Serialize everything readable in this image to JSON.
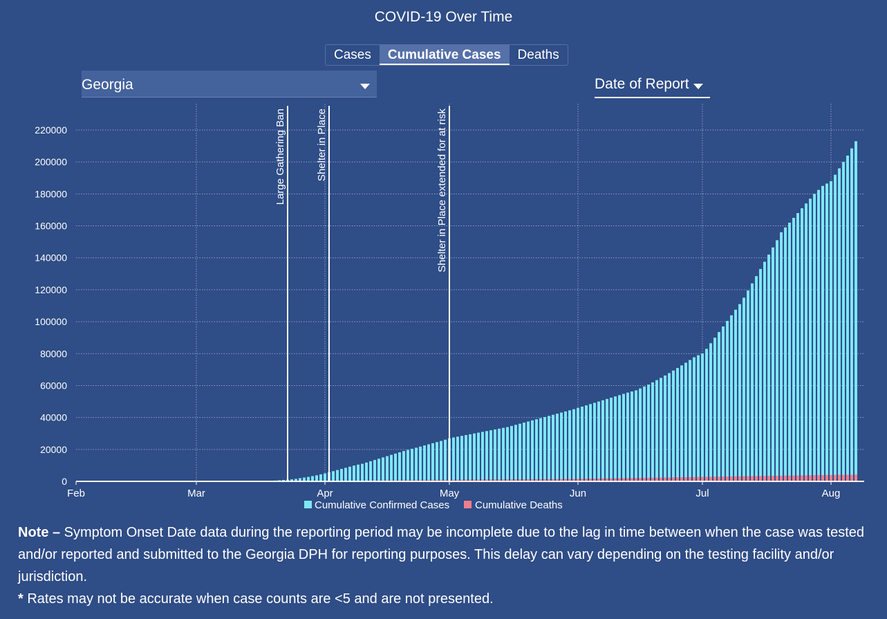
{
  "title": "COVID-19 Over Time",
  "tabs": [
    {
      "label": "Cases"
    },
    {
      "label": "Cumulative Cases",
      "active": true
    },
    {
      "label": "Deaths"
    }
  ],
  "region_select": {
    "value": "Georgia"
  },
  "date_select": {
    "value": "Date of Report"
  },
  "colors": {
    "background": "#2f4d86",
    "cases": "#7fe6f7",
    "deaths": "#f07e8c"
  },
  "chart_data": {
    "type": "bar",
    "title": "",
    "xlabel": "",
    "ylabel": "",
    "x_domain": [
      "2020-02-01",
      "2020-08-09"
    ],
    "ylim": [
      0,
      230000
    ],
    "yticks": [
      0,
      20000,
      40000,
      60000,
      80000,
      100000,
      120000,
      140000,
      160000,
      180000,
      200000,
      220000
    ],
    "xticks": [
      {
        "label": "Feb",
        "date": "2020-02-01"
      },
      {
        "label": "Mar",
        "date": "2020-03-01"
      },
      {
        "label": "Apr",
        "date": "2020-04-01"
      },
      {
        "label": "May",
        "date": "2020-05-01"
      },
      {
        "label": "Jun",
        "date": "2020-06-01"
      },
      {
        "label": "Jul",
        "date": "2020-07-01"
      },
      {
        "label": "Aug",
        "date": "2020-08-01"
      }
    ],
    "grid": true,
    "legend_position": "bottom",
    "start_date": "2020-03-20",
    "annotations": [
      {
        "label": "Large Gathering Ban",
        "date": "2020-03-23"
      },
      {
        "label": "Shelter in Place",
        "date": "2020-04-02"
      },
      {
        "label": "Shelter in Place extended for at risk",
        "date": "2020-05-01"
      }
    ],
    "series": [
      {
        "name": "Cumulative Confirmed Cases",
        "values": [
          500,
          700,
          900,
          1100,
          1300,
          1600,
          2000,
          2400,
          2800,
          3300,
          3800,
          4400,
          5000,
          5700,
          6400,
          7100,
          7800,
          8500,
          9200,
          9900,
          10500,
          11000,
          11800,
          12600,
          13400,
          14200,
          15000,
          15800,
          16600,
          17400,
          18200,
          19000,
          19700,
          20400,
          21100,
          21800,
          22500,
          23200,
          23900,
          24600,
          25300,
          26100,
          27000,
          27500,
          28000,
          28500,
          29000,
          29500,
          30000,
          30500,
          31000,
          31500,
          32000,
          32500,
          33000,
          33500,
          34000,
          34700,
          35400,
          36100,
          36800,
          37500,
          38200,
          38900,
          39600,
          40300,
          41000,
          41700,
          42400,
          43100,
          43800,
          44500,
          45200,
          46000,
          46800,
          47600,
          48400,
          49200,
          50000,
          50800,
          51600,
          52400,
          53200,
          54000,
          54800,
          55600,
          56300,
          57000,
          58200,
          59400,
          60600,
          62000,
          63400,
          64800,
          66300,
          67800,
          69400,
          71000,
          72600,
          74300,
          76000,
          77700,
          79000,
          80000,
          83000,
          86500,
          90000,
          93500,
          97000,
          100500,
          104000,
          107500,
          111000,
          115000,
          119500,
          124000,
          128500,
          133000,
          137500,
          142000,
          146500,
          151000,
          156000,
          159000,
          162000,
          165000,
          168000,
          171000,
          174000,
          177000,
          180000,
          182500,
          185000,
          186500,
          188000,
          192000,
          196000,
          200000,
          204000,
          208500,
          213000
        ]
      },
      {
        "name": "Cumulative Deaths",
        "values": [
          10,
          15,
          25,
          30,
          40,
          50,
          65,
          80,
          100,
          115,
          130,
          150,
          160,
          190,
          220,
          250,
          280,
          310,
          340,
          370,
          400,
          430,
          460,
          490,
          520,
          550,
          580,
          600,
          620,
          640,
          660,
          680,
          700,
          720,
          740,
          760,
          780,
          800,
          820,
          840,
          860,
          880,
          900,
          925,
          950,
          975,
          1000,
          1020,
          1040,
          1060,
          1080,
          1100,
          1120,
          1140,
          1160,
          1180,
          1200,
          1220,
          1240,
          1260,
          1280,
          1300,
          1320,
          1340,
          1360,
          1380,
          1400,
          1420,
          1440,
          1480,
          1520,
          1560,
          1580,
          1600,
          1640,
          1680,
          1720,
          1760,
          1800,
          1840,
          1880,
          1920,
          1960,
          2000,
          2040,
          2080,
          2120,
          2160,
          2200,
          2240,
          2280,
          2320,
          2360,
          2400,
          2440,
          2480,
          2520,
          2560,
          2600,
          2640,
          2680,
          2720,
          2760,
          2800,
          2840,
          2880,
          2920,
          2960,
          3000,
          3040,
          3080,
          3120,
          3160,
          3200,
          3240,
          3280,
          3320,
          3360,
          3400,
          3440,
          3480,
          3520,
          3560,
          3600,
          3640,
          3680,
          3720,
          3760,
          3800,
          3840,
          3880,
          3920,
          3960,
          4000,
          4030,
          4060,
          4090,
          4120,
          4150,
          4180,
          4200
        ]
      }
    ]
  },
  "note": {
    "bold": "Note –",
    "text": " Symptom Onset Date data during the reporting period may be incomplete due to the lag in time between when the case was tested and/or reported and submitted to the Georgia DPH for reporting purposes. This delay can vary depending on the testing facility and/or jurisdiction.",
    "asterisk": "*",
    "rates": " Rates may not be accurate when case counts are <5 and are not presented."
  }
}
